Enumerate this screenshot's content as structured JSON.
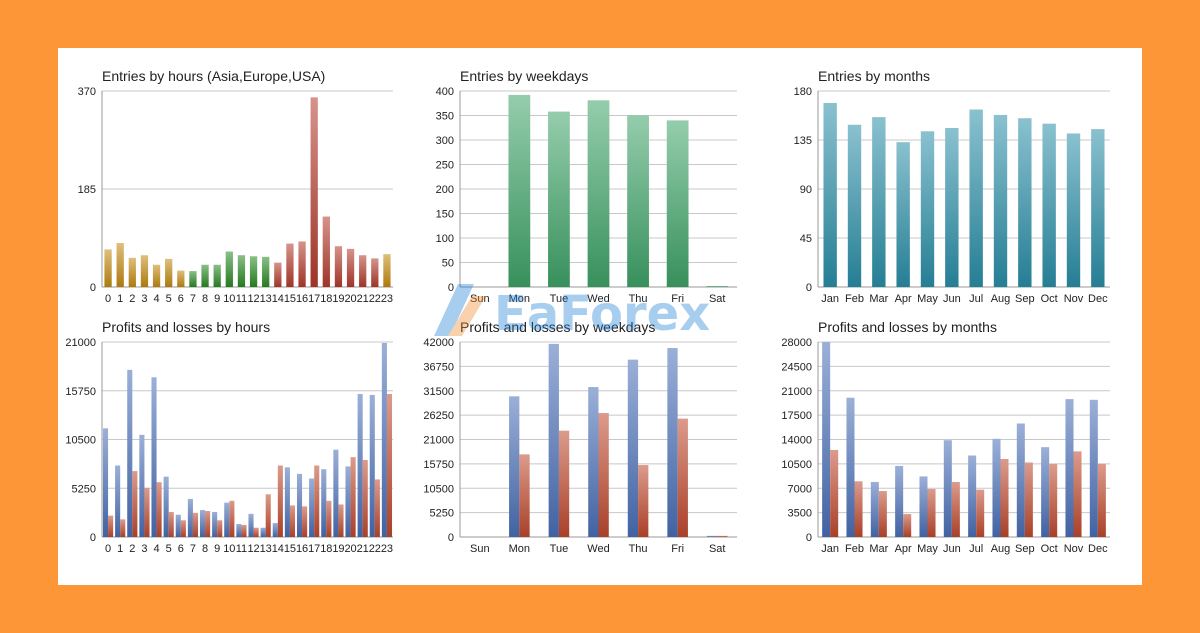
{
  "colors": {
    "frame": "#fd9637",
    "asia": "#c48a10",
    "europe": "#2a8a24",
    "usa": "#b43b2c",
    "weekday": "#3fa468",
    "month": "#2a8fa8",
    "profit": "#4a6fb8",
    "loss": "#c0492e"
  },
  "watermark": "EaForex",
  "chart_data": [
    {
      "id": "entries-hours",
      "type": "bar",
      "title": "Entries by hours (Asia,Europe,USA)",
      "categories": [
        "0",
        "1",
        "2",
        "3",
        "4",
        "5",
        "6",
        "7",
        "8",
        "9",
        "10",
        "11",
        "12",
        "13",
        "14",
        "15",
        "16",
        "17",
        "18",
        "19",
        "20",
        "21",
        "22",
        "23"
      ],
      "values": [
        71,
        83,
        55,
        60,
        42,
        53,
        31,
        30,
        42,
        42,
        67,
        60,
        58,
        57,
        46,
        82,
        86,
        358,
        133,
        77,
        72,
        60,
        54,
        62
      ],
      "bar_colors": [
        "asia",
        "asia",
        "asia",
        "asia",
        "asia",
        "asia",
        "asia",
        "europe",
        "europe",
        "europe",
        "europe",
        "europe",
        "europe",
        "europe",
        "usa",
        "usa",
        "usa",
        "usa",
        "usa",
        "usa",
        "usa",
        "usa",
        "usa",
        "asia"
      ],
      "ylim": [
        0,
        370
      ],
      "yticks": [
        0,
        185,
        370
      ],
      "grid": true
    },
    {
      "id": "entries-weekdays",
      "type": "bar",
      "title": "Entries by weekdays",
      "categories": [
        "Sun",
        "Mon",
        "Tue",
        "Wed",
        "Thu",
        "Fri",
        "Sat"
      ],
      "values": [
        0,
        392,
        358,
        381,
        351,
        340,
        2
      ],
      "ylim": [
        0,
        400
      ],
      "yticks": [
        0,
        50,
        100,
        150,
        200,
        250,
        300,
        350,
        400
      ],
      "grid": true
    },
    {
      "id": "entries-months",
      "type": "bar",
      "title": "Entries by months",
      "categories": [
        "Jan",
        "Feb",
        "Mar",
        "Apr",
        "May",
        "Jun",
        "Jul",
        "Aug",
        "Sep",
        "Oct",
        "Nov",
        "Dec"
      ],
      "values": [
        169,
        149,
        156,
        133,
        143,
        146,
        163,
        158,
        155,
        150,
        141,
        145
      ],
      "ylim": [
        0,
        180
      ],
      "yticks": [
        0,
        45,
        90,
        135,
        180
      ],
      "grid": true
    },
    {
      "id": "pl-hours",
      "type": "bar",
      "title": "Profits and losses by hours",
      "categories": [
        "0",
        "1",
        "2",
        "3",
        "4",
        "5",
        "6",
        "7",
        "8",
        "9",
        "10",
        "11",
        "12",
        "13",
        "14",
        "15",
        "16",
        "17",
        "18",
        "19",
        "20",
        "21",
        "22",
        "23"
      ],
      "series": [
        {
          "color": "profit",
          "values": [
            11700,
            7700,
            18000,
            11000,
            17200,
            6500,
            2400,
            4100,
            2900,
            2700,
            3700,
            1400,
            2500,
            1000,
            1500,
            7500,
            6800,
            6300,
            7300,
            9400,
            7600,
            15400,
            15300,
            20900
          ]
        },
        {
          "color": "loss",
          "values": [
            2300,
            1900,
            7100,
            5300,
            5900,
            2700,
            1800,
            2600,
            2800,
            1800,
            3900,
            1300,
            1000,
            4600,
            7700,
            3400,
            3300,
            7700,
            3900,
            3500,
            8600,
            8300,
            6200,
            15400
          ]
        }
      ],
      "ylim": [
        0,
        21000
      ],
      "yticks": [
        0,
        5250,
        10500,
        15750,
        21000
      ],
      "grid": true
    },
    {
      "id": "pl-weekdays",
      "type": "bar",
      "title": "Profits and losses by weekdays",
      "categories": [
        "Sun",
        "Mon",
        "Tue",
        "Wed",
        "Thu",
        "Fri",
        "Sat"
      ],
      "series": [
        {
          "color": "profit",
          "values": [
            0,
            30300,
            41600,
            32300,
            38200,
            40700,
            250
          ]
        },
        {
          "color": "loss",
          "values": [
            0,
            17800,
            22900,
            26700,
            15500,
            25500,
            250
          ]
        }
      ],
      "ylim": [
        0,
        42000
      ],
      "yticks": [
        0,
        5250,
        10500,
        15750,
        21000,
        26250,
        31500,
        36750,
        42000
      ],
      "grid": true
    },
    {
      "id": "pl-months",
      "type": "bar",
      "title": "Profits and losses by months",
      "categories": [
        "Jan",
        "Feb",
        "Mar",
        "Apr",
        "May",
        "Jun",
        "Jul",
        "Aug",
        "Sep",
        "Oct",
        "Nov",
        "Dec"
      ],
      "series": [
        {
          "color": "profit",
          "values": [
            28000,
            20000,
            7900,
            10200,
            8700,
            13900,
            11700,
            14100,
            16300,
            12900,
            19800,
            19700
          ]
        },
        {
          "color": "loss",
          "values": [
            12500,
            8000,
            6600,
            3300,
            6900,
            7900,
            6800,
            11200,
            10700,
            10500,
            12300,
            10500
          ]
        }
      ],
      "ylim": [
        0,
        28000
      ],
      "yticks": [
        0,
        3500,
        7000,
        10500,
        14000,
        17500,
        21000,
        24500,
        28000
      ],
      "grid": true
    }
  ]
}
